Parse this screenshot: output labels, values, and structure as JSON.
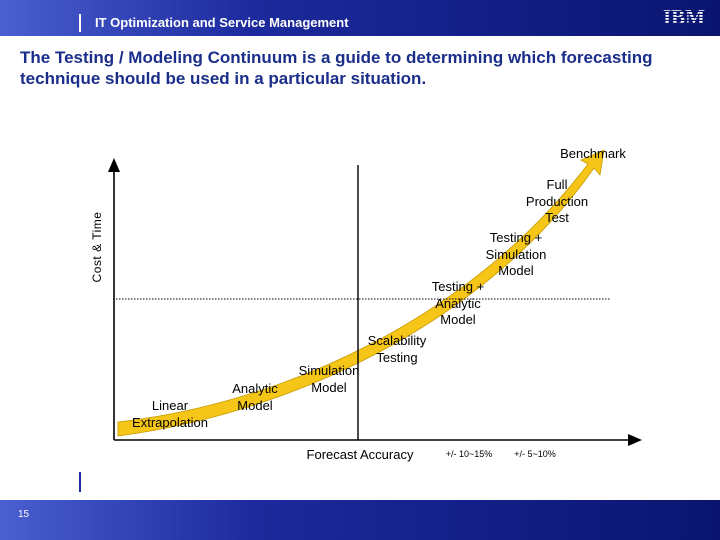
{
  "header": {
    "title": "IT Optimization and Service Management",
    "logo_text": "IBM"
  },
  "headline": "The Testing / Modeling Continuum is a guide to determining which forecasting technique should be used in a particular situation.",
  "diagram": {
    "y_axis_label": "Cost & Time",
    "x_axis_label": "Forecast Accuracy",
    "accuracy_ranges": [
      "+/- 10~15%",
      "+/- 5~10%"
    ],
    "benchmark_label": "Benchmark",
    "techniques": [
      "Linear\nExtrapolation",
      "Analytic\nModel",
      "Simulation\nModel",
      "Scalability\nTesting",
      "Testing +\nAnalytic\nModel",
      "Testing +\nSimulation\nModel",
      "Full\nProduction\nTest"
    ],
    "colors": {
      "arrow": "#f5c518",
      "arrow_outline": "#c89b00",
      "axis": "#000000"
    }
  },
  "footer": {
    "page_number": "15"
  }
}
